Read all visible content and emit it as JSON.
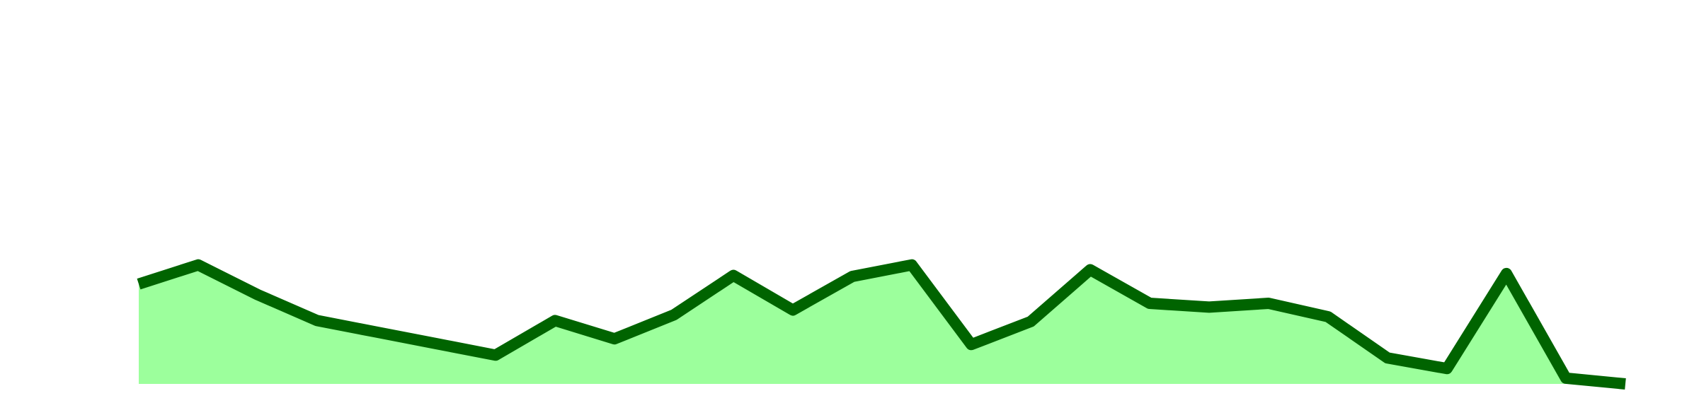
{
  "chart_data": {
    "type": "area",
    "title": "",
    "xlabel": "",
    "ylabel": "",
    "x": [
      0,
      1,
      2,
      3,
      4,
      5,
      6,
      7,
      8,
      9,
      10,
      11,
      12,
      13,
      14,
      15,
      16,
      17,
      18,
      19,
      20,
      21,
      22,
      23,
      24,
      25
    ],
    "series": [
      {
        "values": [
          10.4,
          12.4,
          9.3,
          6.6,
          5.4,
          4.2,
          3.0,
          6.6,
          4.7,
          7.2,
          11.3,
          7.7,
          11.2,
          12.4,
          4.1,
          6.5,
          11.9,
          8.4,
          8.0,
          8.4,
          7.0,
          2.7,
          1.6,
          11.5,
          0.6,
          0
        ],
        "line_color": "#006400",
        "fill_color": "#9cff9c"
      }
    ],
    "ylim": [
      0,
      40
    ],
    "grid": false,
    "legend": "none"
  }
}
